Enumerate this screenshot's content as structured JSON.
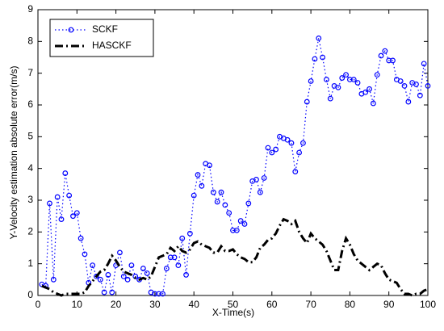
{
  "chart_data": {
    "type": "line",
    "xlabel": "X-Time(s)",
    "ylabel": "Y-Velocity estimation absolute error(m/s)",
    "x": [
      1,
      2,
      3,
      4,
      5,
      6,
      7,
      8,
      9,
      10,
      11,
      12,
      13,
      14,
      15,
      16,
      17,
      18,
      19,
      20,
      21,
      22,
      23,
      24,
      25,
      26,
      27,
      28,
      29,
      30,
      31,
      32,
      33,
      34,
      35,
      36,
      37,
      38,
      39,
      40,
      41,
      42,
      43,
      44,
      45,
      46,
      47,
      48,
      49,
      50,
      51,
      52,
      53,
      54,
      55,
      56,
      57,
      58,
      59,
      60,
      61,
      62,
      63,
      64,
      65,
      66,
      67,
      68,
      69,
      70,
      71,
      72,
      73,
      74,
      75,
      76,
      77,
      78,
      79,
      80,
      81,
      82,
      83,
      84,
      85,
      86,
      87,
      88,
      89,
      90,
      91,
      92,
      93,
      94,
      95,
      96,
      97,
      98,
      99,
      100
    ],
    "series": [
      {
        "name": "SCKF",
        "color": "#0000ff",
        "values": [
          0.35,
          0.3,
          2.9,
          0.5,
          3.1,
          2.4,
          3.85,
          3.15,
          2.5,
          2.6,
          1.8,
          1.3,
          0.4,
          0.95,
          0.6,
          0.5,
          0.1,
          0.65,
          0.1,
          0.95,
          1.35,
          0.6,
          0.5,
          0.95,
          0.6,
          0.5,
          0.85,
          0.7,
          0.1,
          0.05,
          0.05,
          0.05,
          0.85,
          1.2,
          1.2,
          0.95,
          1.8,
          0.65,
          1.95,
          3.15,
          3.8,
          3.45,
          4.15,
          4.1,
          3.25,
          2.95,
          3.25,
          2.85,
          2.6,
          2.05,
          2.05,
          2.35,
          2.25,
          2.9,
          3.6,
          3.65,
          3.25,
          3.7,
          4.65,
          4.5,
          4.6,
          5.0,
          4.95,
          4.9,
          4.8,
          3.9,
          4.5,
          4.8,
          6.1,
          6.75,
          7.45,
          8.1,
          7.5,
          6.8,
          6.2,
          6.6,
          6.55,
          6.85,
          6.95,
          6.8,
          6.8,
          6.7,
          6.35,
          6.4,
          6.5,
          6.05,
          6.95,
          7.55,
          7.7,
          7.4,
          7.4,
          6.8,
          6.75,
          6.6,
          6.1,
          6.7,
          6.65,
          6.3,
          7.3,
          6.6
        ]
      },
      {
        "name": "HASCKF",
        "color": "#000000",
        "values": [
          0.3,
          0.25,
          0.2,
          0.1,
          0.05,
          0.0,
          0.05,
          0.05,
          0.05,
          0.05,
          0.05,
          0.1,
          0.3,
          0.45,
          0.6,
          0.75,
          0.8,
          1.0,
          1.25,
          1.1,
          0.9,
          0.75,
          0.7,
          0.65,
          0.55,
          0.5,
          0.55,
          0.5,
          0.6,
          0.9,
          1.2,
          1.25,
          1.3,
          1.5,
          1.4,
          1.55,
          1.4,
          1.35,
          1.45,
          1.65,
          1.7,
          1.6,
          1.55,
          1.5,
          1.35,
          1.35,
          1.55,
          1.4,
          1.4,
          1.45,
          1.3,
          1.2,
          1.15,
          1.05,
          1.05,
          1.2,
          1.5,
          1.6,
          1.75,
          1.8,
          1.95,
          2.2,
          2.4,
          2.35,
          2.25,
          2.35,
          2.0,
          1.8,
          1.65,
          1.95,
          1.8,
          1.7,
          1.6,
          1.4,
          1.1,
          0.8,
          0.8,
          1.4,
          1.8,
          1.6,
          1.3,
          1.1,
          1.0,
          0.9,
          0.8,
          0.9,
          1.0,
          0.95,
          0.7,
          0.5,
          0.45,
          0.4,
          0.2,
          0.05,
          0.05,
          0.0,
          0.05,
          0.05,
          0.15,
          0.2
        ]
      }
    ],
    "xlim": [
      0,
      100
    ],
    "xticks": [
      0,
      10,
      20,
      30,
      40,
      50,
      60,
      70,
      80,
      90,
      100
    ],
    "ylim": [
      0,
      9
    ],
    "yticks": [
      0,
      1,
      2,
      3,
      4,
      5,
      6,
      7,
      8,
      9
    ],
    "legend": "upper left"
  }
}
